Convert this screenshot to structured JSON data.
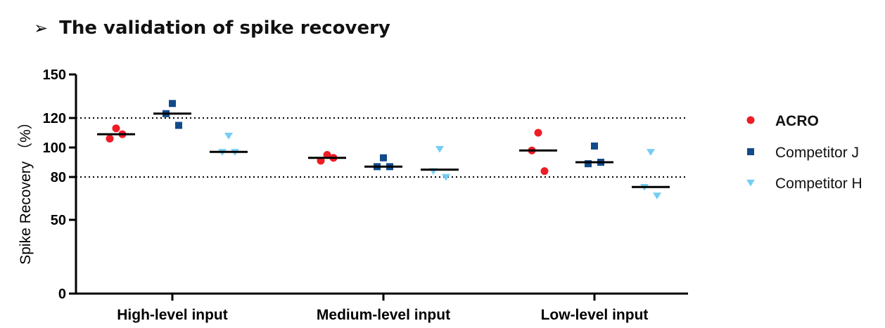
{
  "heading": {
    "bullet": "➢",
    "title": "The validation of spike recovery"
  },
  "colors": {
    "ACRO": "#ee1c25",
    "Competitor J": "#124a8a",
    "Competitor H": "#74cdf4"
  },
  "chart_data": {
    "type": "scatter",
    "title": "",
    "ylabel": "Spike Recovery （%）",
    "xlabel": "",
    "categories": [
      "High-level input",
      "Medium-level input",
      "Low-level input"
    ],
    "yticks": [
      0,
      50,
      80,
      100,
      120,
      150
    ],
    "ytick_labels": [
      "0",
      "50",
      "80",
      "100",
      "120",
      "150"
    ],
    "ylim": [
      0,
      150
    ],
    "reference_lines": [
      120,
      80
    ],
    "legend_position": "right",
    "series": [
      {
        "name": "ACRO",
        "marker": "circle",
        "points": [
          [
            113,
            106,
            109
          ],
          [
            95,
            91,
            93
          ],
          [
            110,
            98,
            84
          ]
        ],
        "means": [
          109,
          93,
          98
        ]
      },
      {
        "name": "Competitor J",
        "marker": "square",
        "points": [
          [
            130,
            123,
            115
          ],
          [
            93,
            87,
            87
          ],
          [
            101,
            89,
            90
          ]
        ],
        "means": [
          123,
          87,
          90
        ]
      },
      {
        "name": "Competitor H",
        "marker": "triangle-down",
        "points": [
          [
            108,
            97,
            97
          ],
          [
            99,
            84,
            80
          ],
          [
            97,
            73,
            67
          ]
        ],
        "means": [
          97,
          85,
          73
        ]
      }
    ]
  }
}
